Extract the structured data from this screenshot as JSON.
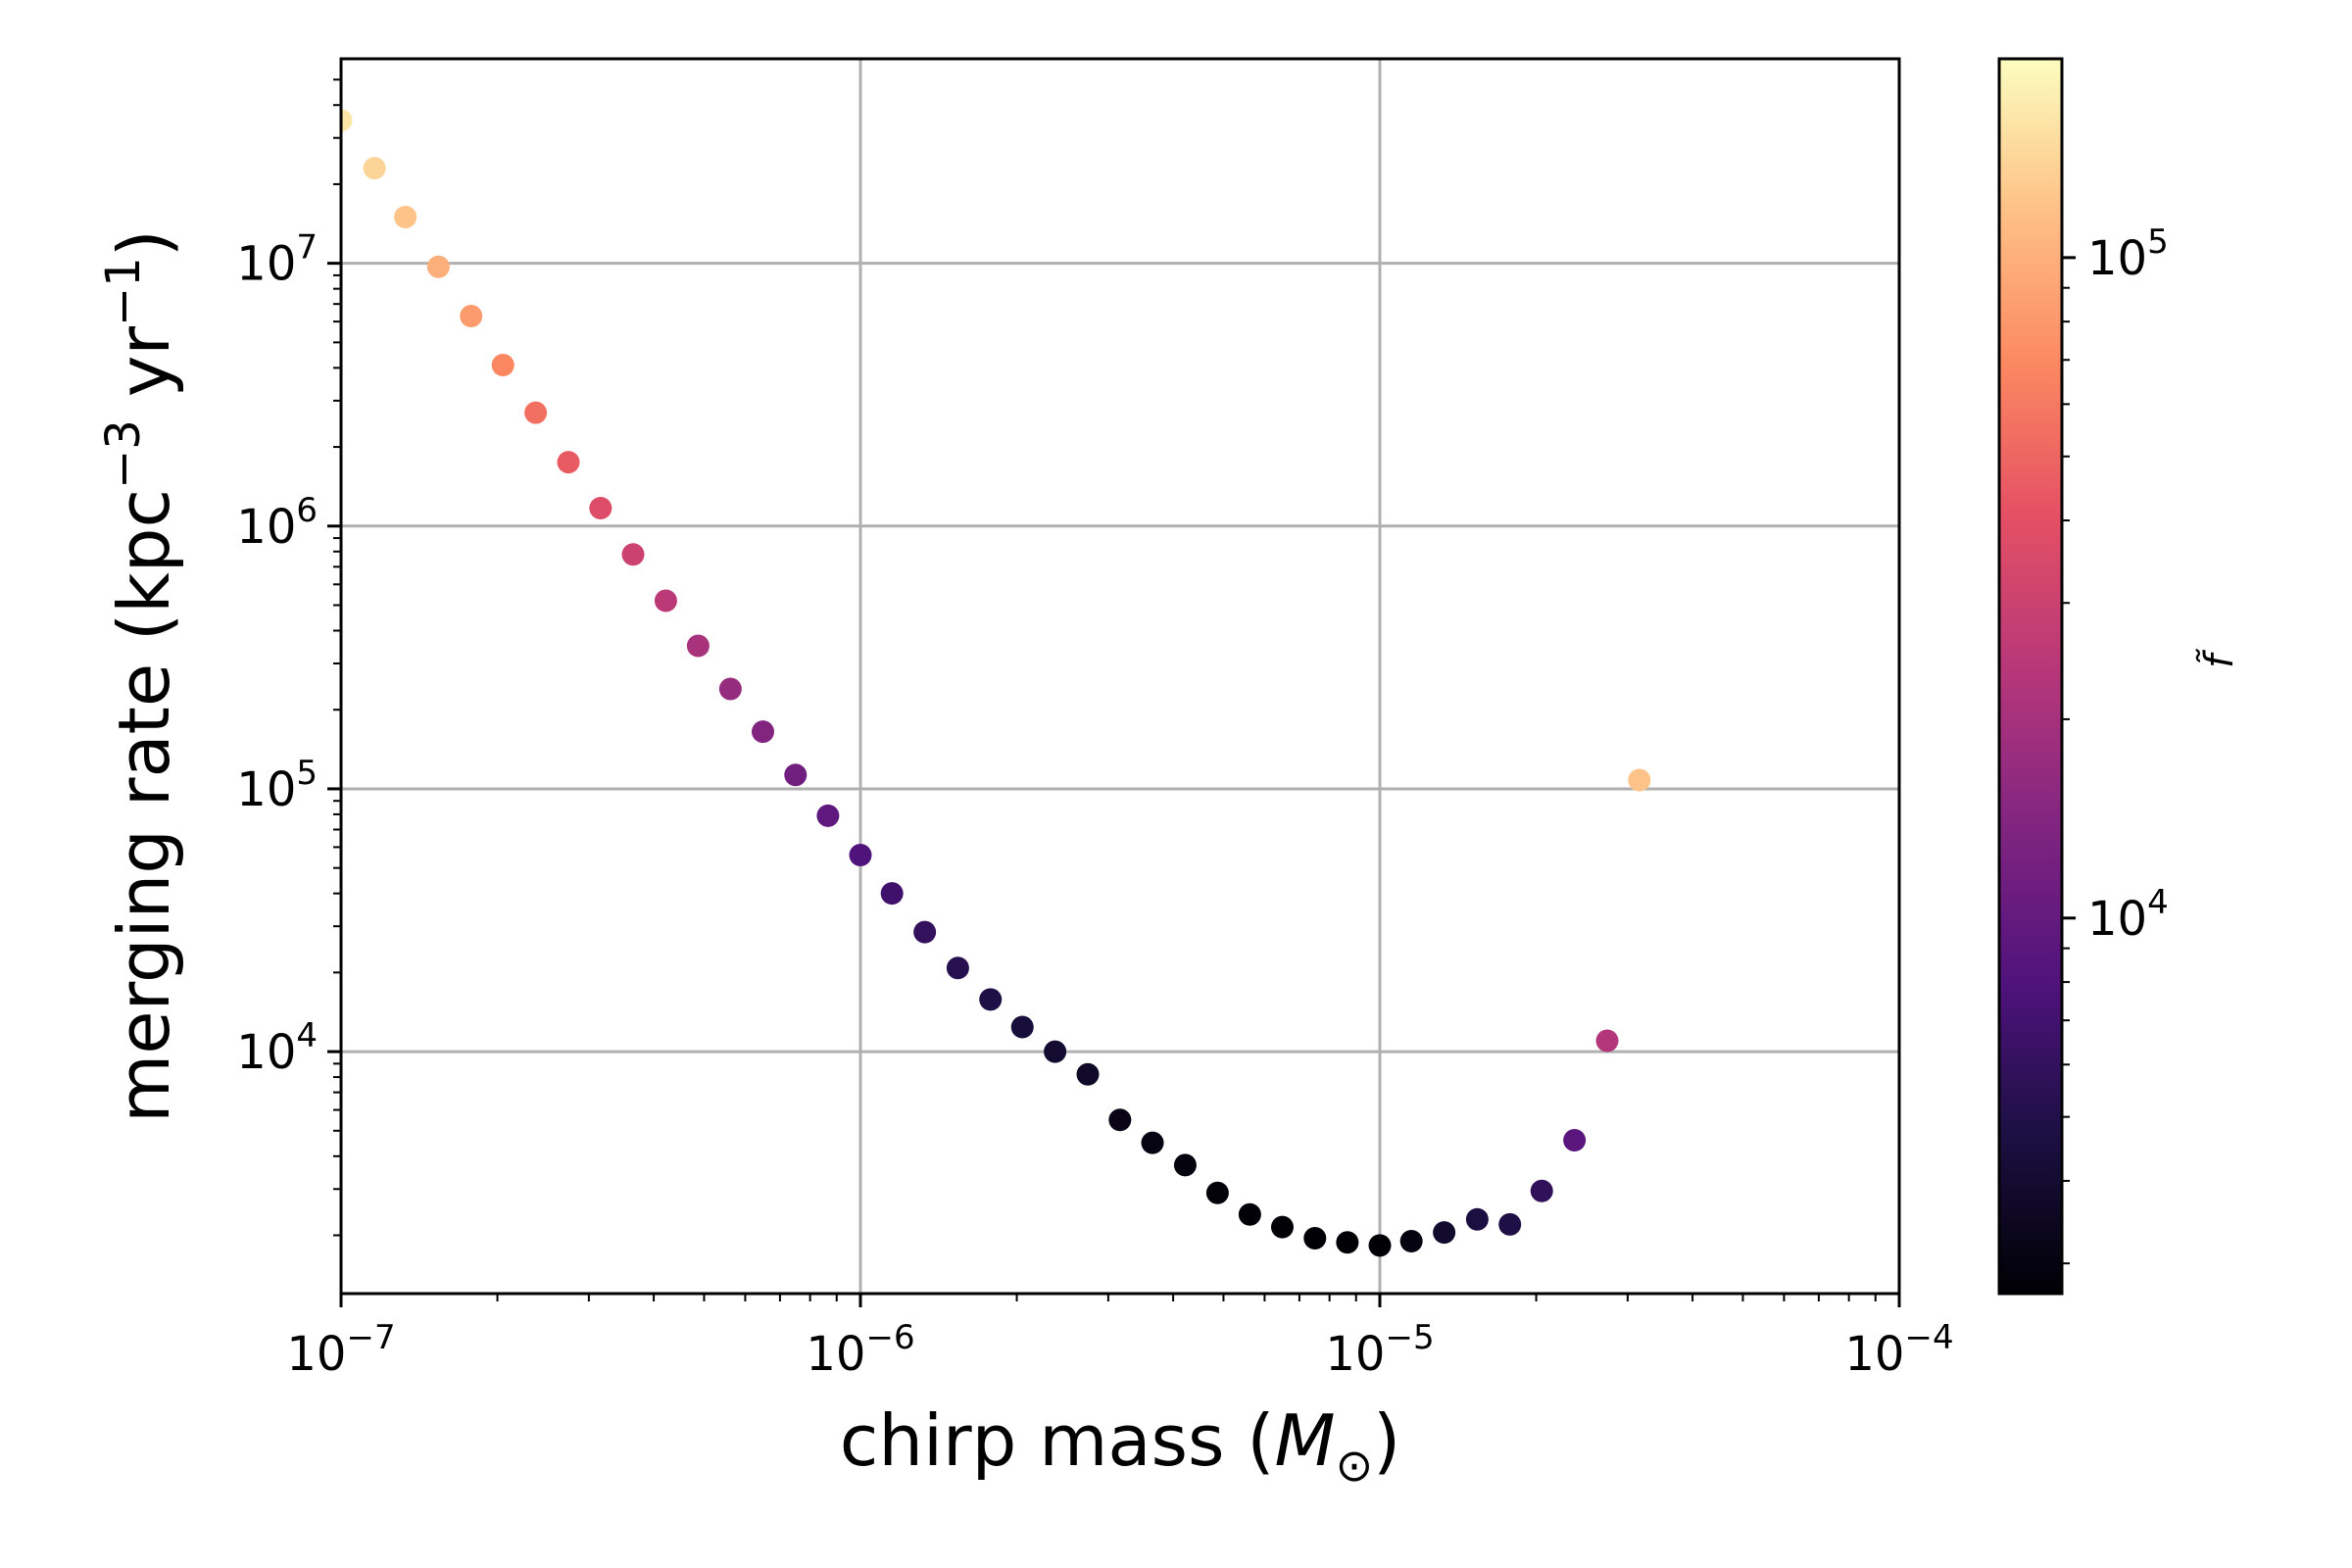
{
  "chart_data": {
    "type": "scatter",
    "xlabel": "chirp mass (",
    "xlabel_symbol": "M",
    "xlabel_subscript": "⊙",
    "xlabel_close": ")",
    "ylabel": "merging rate (kpc",
    "ylabel_exp1": "−3",
    "ylabel_mid": " yr",
    "ylabel_exp2": "−1",
    "ylabel_close": ")",
    "xscale": "log",
    "yscale": "log",
    "xlim": [
      1e-07,
      0.0001
    ],
    "ylim": [
      1200,
      60000000
    ],
    "grid": true,
    "colormap": "magma",
    "colorbar": {
      "label": "f̃",
      "scale": "log",
      "range": [
        2700,
        200000
      ],
      "ticks": [
        {
          "value": 10000,
          "base": "10",
          "exp": "4"
        },
        {
          "value": 100000,
          "base": "10",
          "exp": "5"
        }
      ]
    },
    "x_ticks": [
      {
        "value": 1e-07,
        "base": "10",
        "exp": "−7"
      },
      {
        "value": 1e-06,
        "base": "10",
        "exp": "−6"
      },
      {
        "value": 1e-05,
        "base": "10",
        "exp": "−5"
      },
      {
        "value": 0.0001,
        "base": "10",
        "exp": "−4"
      }
    ],
    "y_ticks": [
      {
        "value": 10000,
        "base": "10",
        "exp": "4"
      },
      {
        "value": 100000,
        "base": "10",
        "exp": "5"
      },
      {
        "value": 1000000,
        "base": "10",
        "exp": "6"
      },
      {
        "value": 10000000,
        "base": "10",
        "exp": "7"
      }
    ],
    "points": [
      {
        "x": 1e-07,
        "y": 35000000,
        "c": 160000
      },
      {
        "x": 1.16e-07,
        "y": 23000000,
        "c": 140000
      },
      {
        "x": 1.33e-07,
        "y": 15000000,
        "c": 120000
      },
      {
        "x": 1.54e-07,
        "y": 9700000,
        "c": 100000
      },
      {
        "x": 1.78e-07,
        "y": 6300000,
        "c": 83000
      },
      {
        "x": 2.05e-07,
        "y": 4100000,
        "c": 68000
      },
      {
        "x": 2.37e-07,
        "y": 2700000,
        "c": 55000
      },
      {
        "x": 2.74e-07,
        "y": 1750000,
        "c": 45000
      },
      {
        "x": 3.16e-07,
        "y": 1170000,
        "c": 37000
      },
      {
        "x": 3.65e-07,
        "y": 780000,
        "c": 30000
      },
      {
        "x": 4.22e-07,
        "y": 520000,
        "c": 25000
      },
      {
        "x": 4.87e-07,
        "y": 350000,
        "c": 20500
      },
      {
        "x": 5.62e-07,
        "y": 240000,
        "c": 17000
      },
      {
        "x": 6.49e-07,
        "y": 165000,
        "c": 14000
      },
      {
        "x": 7.5e-07,
        "y": 113000,
        "c": 11500
      },
      {
        "x": 8.66e-07,
        "y": 79000,
        "c": 9500
      },
      {
        "x": 1e-06,
        "y": 56000,
        "c": 8000
      },
      {
        "x": 1.15e-06,
        "y": 40000,
        "c": 6800
      },
      {
        "x": 1.33e-06,
        "y": 28500,
        "c": 6000
      },
      {
        "x": 1.54e-06,
        "y": 20800,
        "c": 5300
      },
      {
        "x": 1.78e-06,
        "y": 15800,
        "c": 4800
      },
      {
        "x": 2.05e-06,
        "y": 12400,
        "c": 4400
      },
      {
        "x": 2.37e-06,
        "y": 10000,
        "c": 4000
      },
      {
        "x": 2.74e-06,
        "y": 8200,
        "c": 3700
      },
      {
        "x": 3.16e-06,
        "y": 5500,
        "c": 3200
      },
      {
        "x": 3.65e-06,
        "y": 4500,
        "c": 3050
      },
      {
        "x": 4.22e-06,
        "y": 3700,
        "c": 2950
      },
      {
        "x": 4.87e-06,
        "y": 2900,
        "c": 2850
      },
      {
        "x": 5.62e-06,
        "y": 2400,
        "c": 2800
      },
      {
        "x": 6.49e-06,
        "y": 2150,
        "c": 2750
      },
      {
        "x": 7.5e-06,
        "y": 1950,
        "c": 2700
      },
      {
        "x": 8.66e-06,
        "y": 1880,
        "c": 2700
      },
      {
        "x": 1e-05,
        "y": 1830,
        "c": 2700
      },
      {
        "x": 1.15e-05,
        "y": 1900,
        "c": 3000
      },
      {
        "x": 1.33e-05,
        "y": 2050,
        "c": 3900
      },
      {
        "x": 1.54e-05,
        "y": 2300,
        "c": 4600
      },
      {
        "x": 1.78e-05,
        "y": 2200,
        "c": 4800
      },
      {
        "x": 2.05e-05,
        "y": 2950,
        "c": 5800
      },
      {
        "x": 2.37e-05,
        "y": 4600,
        "c": 9000
      },
      {
        "x": 2.74e-05,
        "y": 11000,
        "c": 23000
      },
      {
        "x": 3.16e-05,
        "y": 108000,
        "c": 120000
      }
    ]
  }
}
